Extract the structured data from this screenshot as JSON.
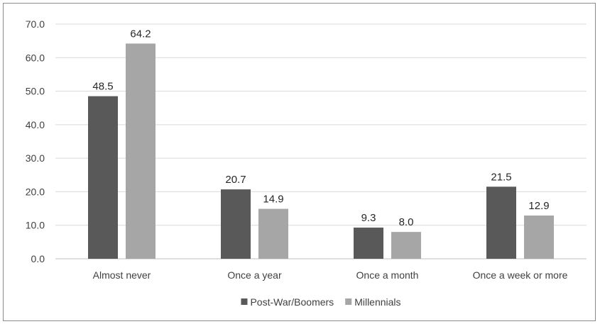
{
  "chart_data": {
    "type": "bar",
    "categories": [
      "Almost never",
      "Once a year",
      "Once a month",
      "Once a week or more"
    ],
    "series": [
      {
        "name": "Post-War/Boomers",
        "values": [
          48.5,
          20.7,
          9.3,
          21.5
        ],
        "color": "#595959"
      },
      {
        "name": "Millennials",
        "values": [
          64.2,
          14.9,
          8.0,
          12.9
        ],
        "color": "#a6a6a6"
      }
    ],
    "y_ticks": [
      "0.0",
      "10.0",
      "20.0",
      "30.0",
      "40.0",
      "50.0",
      "60.0",
      "70.0"
    ],
    "ylim": [
      0,
      70
    ],
    "grid": true,
    "legend_position": "bottom",
    "title": "",
    "xlabel": "",
    "ylabel": ""
  }
}
